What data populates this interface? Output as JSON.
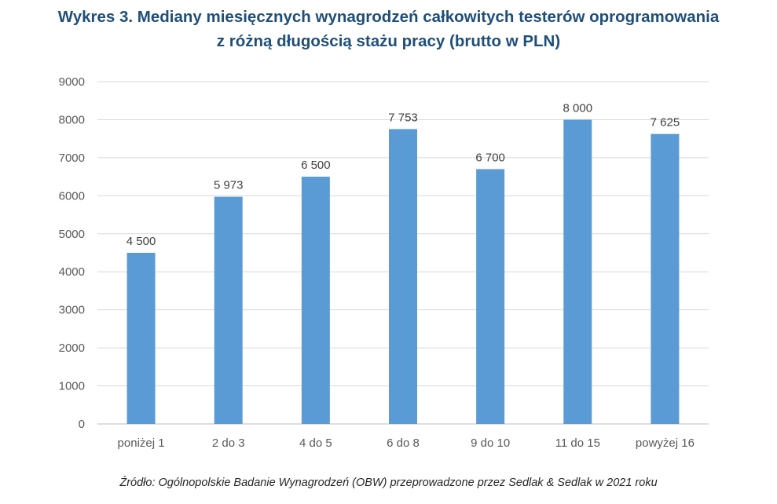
{
  "chart_data": {
    "type": "bar",
    "title_lines": [
      "Wykres 3. Mediany miesięcznych wynagrodzeń całkowitych testerów oprogramowania",
      "z różną długością stażu pracy (brutto w PLN)"
    ],
    "categories": [
      "poniżej 1",
      "2 do 3",
      "4 do 5",
      "6 do 8",
      "9 do 10",
      "11 do 15",
      "powyżej 16"
    ],
    "values": [
      4500,
      5973,
      6500,
      7753,
      6700,
      8000,
      7625
    ],
    "data_labels": [
      "4 500",
      "5 973",
      "6 500",
      "7 753",
      "6 700",
      "8 000",
      "7 625"
    ],
    "yticks": [
      "0",
      "1000",
      "2000",
      "3000",
      "4000",
      "5000",
      "6000",
      "7000",
      "8000",
      "9000"
    ],
    "ylim": [
      0,
      9000
    ],
    "grid": true,
    "legend": "none",
    "bar_color": "#5B9BD5",
    "source": "Źródło: Ogólnopolskie Badanie Wynagrodzeń (OBW) przeprowadzone przez Sedlak & Sedlak w 2021 roku"
  }
}
